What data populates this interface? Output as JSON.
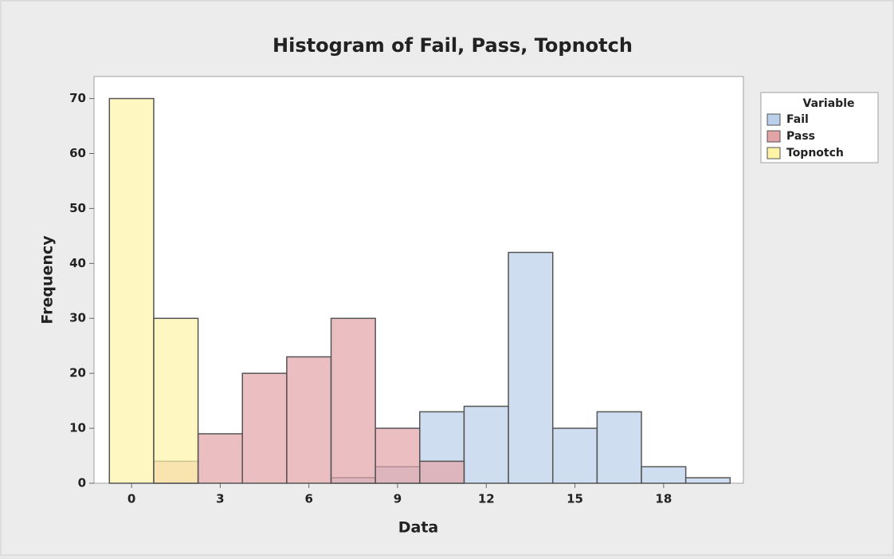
{
  "chart_data": {
    "type": "histogram",
    "title": "Histogram of Fail, Pass, Topnotch",
    "x_label": "Data",
    "y_label": "Frequency",
    "legend_title": "Variable",
    "bins": [
      -0.75,
      0.75,
      2.25,
      3.75,
      5.25,
      6.75,
      8.25,
      9.75,
      11.25,
      12.75,
      14.25,
      15.75,
      17.25,
      18.75,
      20.25
    ],
    "series": [
      {
        "name": "Fail",
        "color": "#b9d0ea",
        "values": [
          0,
          0,
          0,
          0,
          0,
          1,
          3,
          13,
          14,
          42,
          10,
          13,
          3,
          1
        ]
      },
      {
        "name": "Pass",
        "color": "#e3a4a6",
        "values": [
          0,
          4,
          9,
          20,
          23,
          30,
          10,
          4,
          0,
          0,
          0,
          0,
          0,
          0
        ]
      },
      {
        "name": "Topnotch",
        "color": "#fff4a6",
        "values": [
          70,
          30,
          0,
          0,
          0,
          0,
          0,
          0,
          0,
          0,
          0,
          0,
          0,
          0
        ]
      }
    ],
    "xlim": [
      -1.27,
      20.7
    ],
    "ylim": [
      0,
      74
    ],
    "xticks": [
      0,
      3,
      6,
      9,
      12,
      15,
      18
    ],
    "yticks": [
      0,
      10,
      20,
      30,
      40,
      50,
      60,
      70
    ],
    "legend_position": "right"
  }
}
